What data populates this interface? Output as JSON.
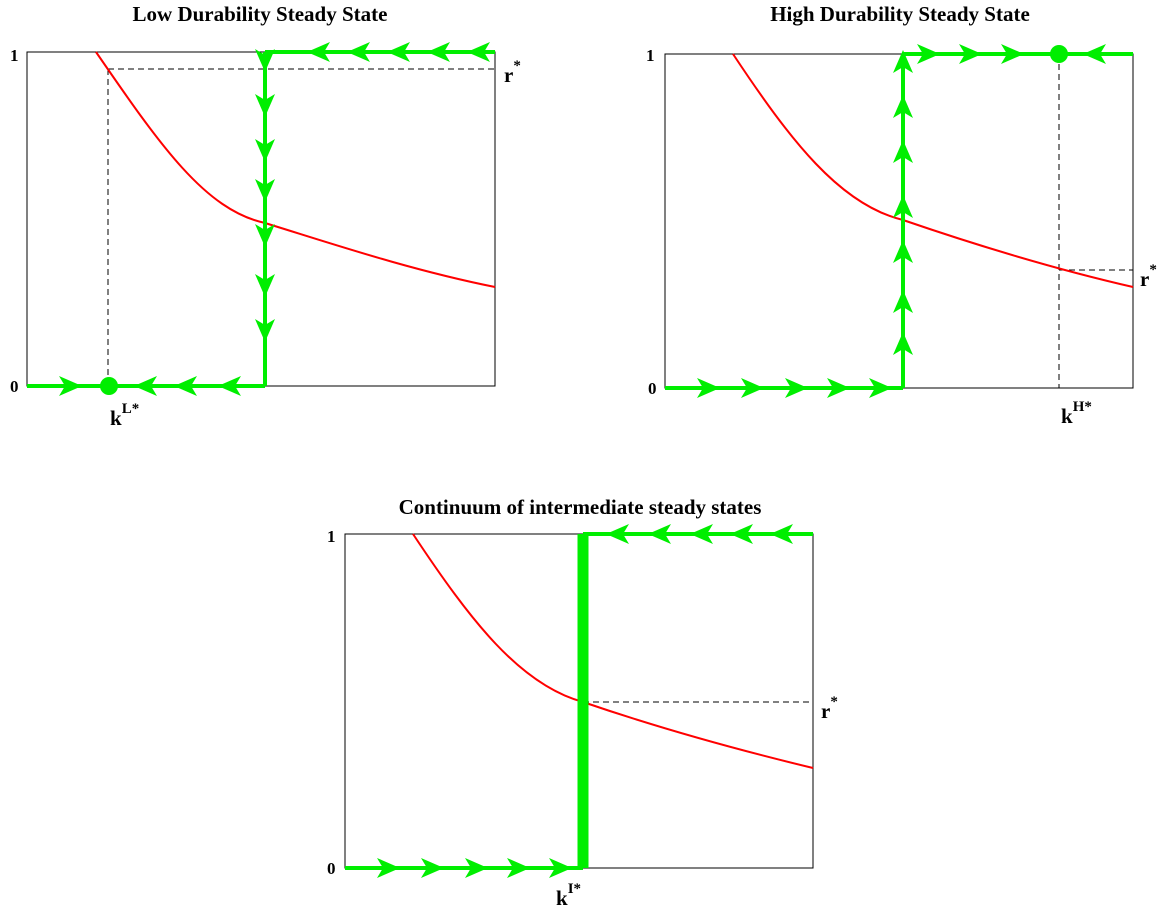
{
  "panels": [
    {
      "id": "low",
      "title": "Low Durability Steady State",
      "y_top_label": "1",
      "y_bottom_label": "0",
      "k_label": "k",
      "k_sup": "L*",
      "r_label": "r",
      "r_sup": "*"
    },
    {
      "id": "high",
      "title": "High Durability Steady State",
      "y_top_label": "1",
      "y_bottom_label": "0",
      "k_label": "k",
      "k_sup": "H*",
      "r_label": "r",
      "r_sup": "*"
    },
    {
      "id": "intermediate",
      "title": "Continuum of intermediate steady states",
      "y_top_label": "1",
      "y_bottom_label": "0",
      "k_label": "k",
      "k_sup": "I*",
      "r_label": "r",
      "r_sup": "*"
    }
  ],
  "colors": {
    "curve": "#ff0000",
    "flow": "#00ee00",
    "frame": "#000000",
    "guide": "#000000"
  }
}
